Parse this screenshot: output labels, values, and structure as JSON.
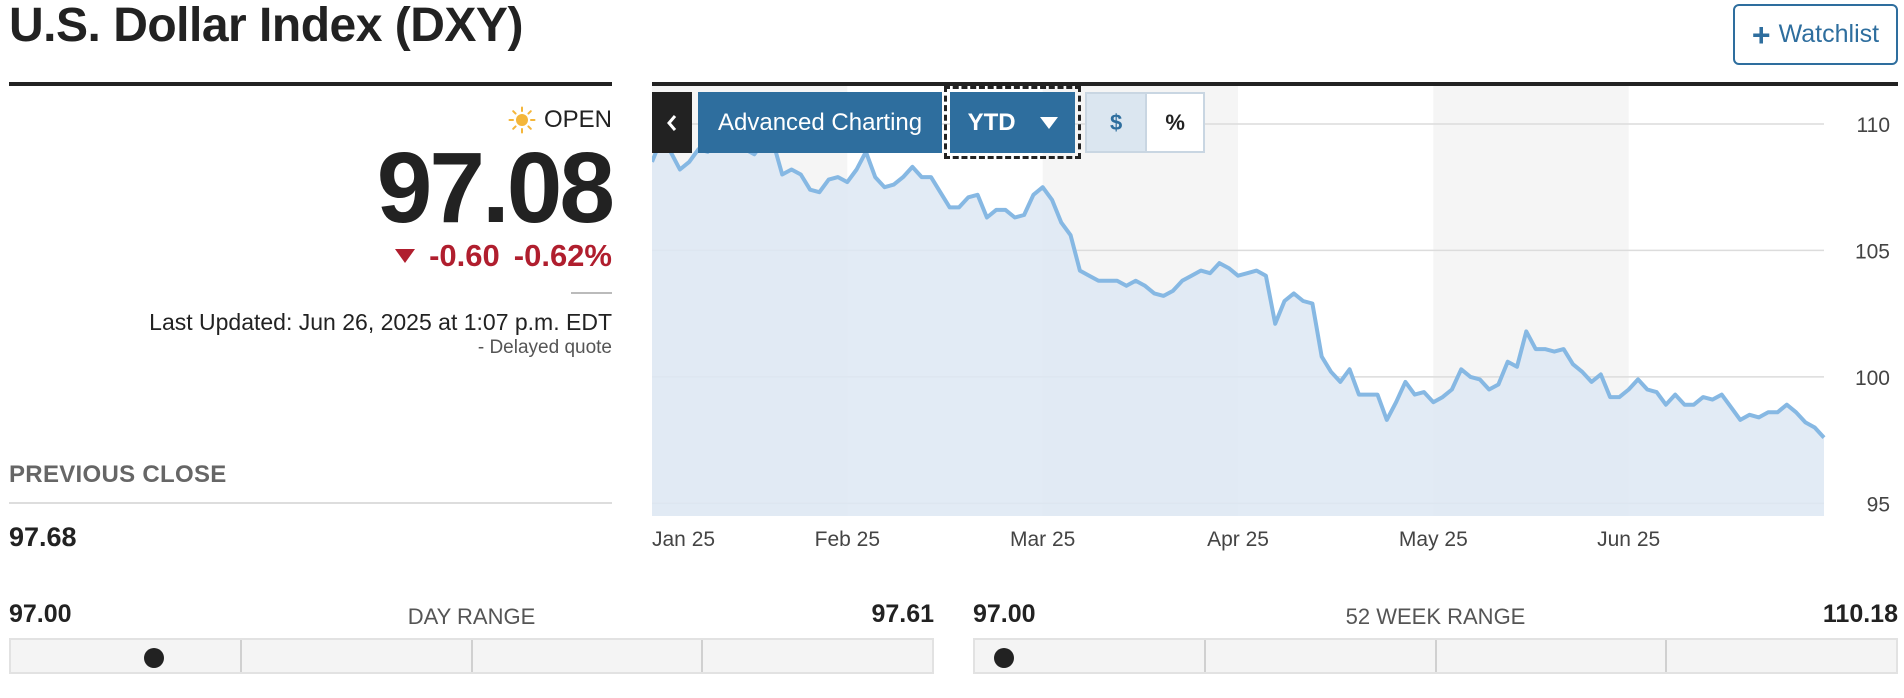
{
  "header": {
    "title": "U.S. Dollar Index (DXY)",
    "watchlist_label": "Watchlist"
  },
  "quote": {
    "status": "OPEN",
    "status_icon": "sun-icon",
    "price": "97.08",
    "change": "-0.60",
    "change_pct": "-0.62%",
    "change_color": "#b01e2e",
    "last_updated": "Last Updated: Jun 26, 2025 at 1:07 p.m. EDT",
    "delayed": "-  Delayed quote"
  },
  "previous_close": {
    "label": "PREVIOUS CLOSE",
    "value": "97.68"
  },
  "toolbar": {
    "back_icon": "chevron-left-icon",
    "advanced_label": "Advanced Charting",
    "range_label": "YTD",
    "dollar_label": "$",
    "percent_label": "%",
    "accent": "#2e6e9e"
  },
  "day_range": {
    "low": "97.00",
    "high": "97.61",
    "label": "DAY RANGE",
    "position": 0.14
  },
  "week52_range": {
    "low": "97.00",
    "high": "110.18",
    "label": "52 WEEK RANGE",
    "position": 0.01
  },
  "chart_data": {
    "type": "area",
    "x_ticks": [
      "Jan 25",
      "Feb 25",
      "Mar 25",
      "Apr 25",
      "May 25",
      "Jun 25"
    ],
    "y_ticks": [
      110,
      105,
      100,
      95
    ],
    "ylim": [
      94.5,
      111.5
    ],
    "line_color": "#86b8e3",
    "fill_color": "#dde8f3",
    "grid": true,
    "series": [
      {
        "values": [
          108.5,
          109.4,
          108.9,
          108.2,
          108.5,
          109.0,
          108.9,
          109.5,
          109.9,
          109.2,
          109.0,
          108.8,
          109.3,
          109.3,
          108.0,
          108.2,
          108.0,
          107.4,
          107.3,
          107.8,
          107.9,
          107.7,
          108.2,
          108.9,
          107.9,
          107.5,
          107.6,
          107.9,
          108.3,
          107.9,
          107.9,
          107.3,
          106.7,
          106.7,
          107.1,
          107.2,
          106.3,
          106.6,
          106.6,
          106.3,
          106.4,
          107.2,
          107.5,
          107.0,
          106.1,
          105.6,
          104.2,
          104.0,
          103.8,
          103.8,
          103.8,
          103.6,
          103.8,
          103.6,
          103.3,
          103.2,
          103.4,
          103.8,
          104.0,
          104.2,
          104.1,
          104.5,
          104.3,
          104.0,
          104.1,
          104.2,
          104.0,
          102.1,
          103.0,
          103.3,
          103.0,
          102.9,
          100.8,
          100.2,
          99.8,
          100.3,
          99.3,
          99.3,
          99.3,
          98.3,
          99.0,
          99.8,
          99.3,
          99.4,
          99.0,
          99.2,
          99.5,
          100.3,
          100.0,
          99.9,
          99.5,
          99.7,
          100.6,
          100.4,
          101.8,
          101.1,
          101.1,
          101.0,
          101.1,
          100.5,
          100.2,
          99.8,
          100.1,
          99.2,
          99.2,
          99.5,
          99.9,
          99.5,
          99.4,
          98.9,
          99.3,
          98.9,
          98.9,
          99.2,
          99.1,
          99.3,
          98.8,
          98.3,
          98.5,
          98.4,
          98.6,
          98.6,
          98.9,
          98.6,
          98.2,
          98.0,
          97.6
        ]
      }
    ]
  }
}
